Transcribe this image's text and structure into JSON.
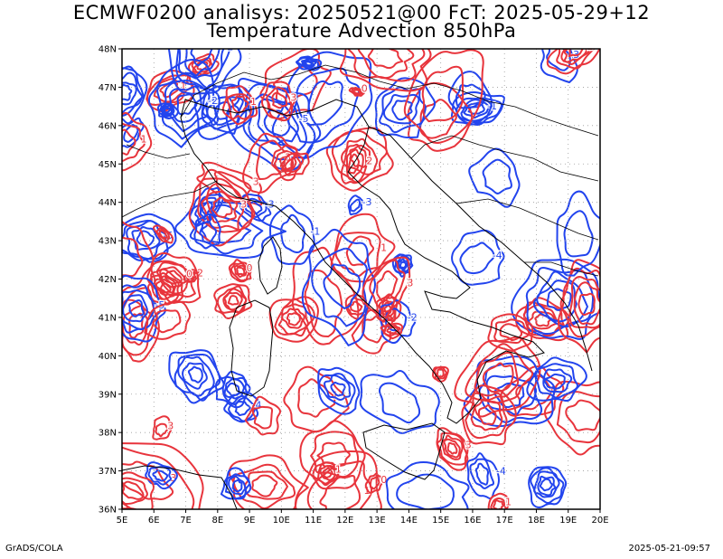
{
  "title_line1": "ECMWF0200 analisys: 20250521@00 FcT: 2025-05-29+12",
  "title_line2": "Temperature Advection 850hPa",
  "footer_left": "GrADS/COLA",
  "footer_right": "2025-05-21-09:57",
  "map": {
    "lon_labels": [
      "5E",
      "6E",
      "7E",
      "8E",
      "9E",
      "10E",
      "11E",
      "12E",
      "13E",
      "14E",
      "15E",
      "16E",
      "17E",
      "18E",
      "19E",
      "20E"
    ],
    "lat_labels": [
      "36N",
      "37N",
      "38N",
      "39N",
      "40N",
      "41N",
      "42N",
      "43N",
      "44N",
      "45N",
      "46N",
      "47N",
      "48N"
    ],
    "lon_range": [
      5,
      20
    ],
    "lat_range": [
      36,
      48
    ],
    "gridlines": "dotted",
    "colors": {
      "positive_contour": "#e8343c",
      "negative_contour": "#2244ee",
      "coastline": "#000000",
      "grid": "#9a9a9a"
    },
    "contour_labels": [
      "0",
      "1",
      "2",
      "3",
      "-1",
      "-2",
      "-3",
      "-4",
      "-5"
    ]
  }
}
